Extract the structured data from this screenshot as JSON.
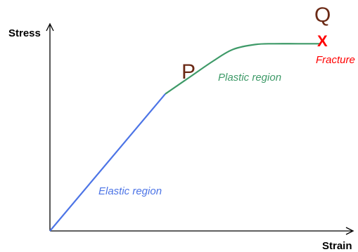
{
  "chart_data": {
    "type": "line",
    "xlabel": "Strain",
    "ylabel": "Stress",
    "series": [
      {
        "name": "Elastic region",
        "x": [
          0,
          0.41
        ],
        "y": [
          0,
          0.71
        ]
      },
      {
        "name": "Plastic region",
        "x": [
          0.41,
          0.5,
          0.58,
          0.65,
          0.73,
          0.8,
          0.88,
          0.96
        ],
        "y": [
          0.71,
          0.8,
          0.88,
          0.94,
          0.966,
          0.97,
          0.97,
          0.97
        ]
      }
    ],
    "points": [
      {
        "label": "P",
        "x": 0.41,
        "y": 0.71
      },
      {
        "label": "Q",
        "x": 0.96,
        "y": 0.97
      }
    ],
    "fracture": {
      "marker": "X",
      "label": "Fracture",
      "x": 0.96,
      "y": 0.97
    }
  },
  "colors": {
    "axis": "#000000",
    "elastic": "#4c74e6",
    "plastic": "#3e9a68",
    "point_label": "#6b2a16",
    "fracture": "#ff0000"
  }
}
